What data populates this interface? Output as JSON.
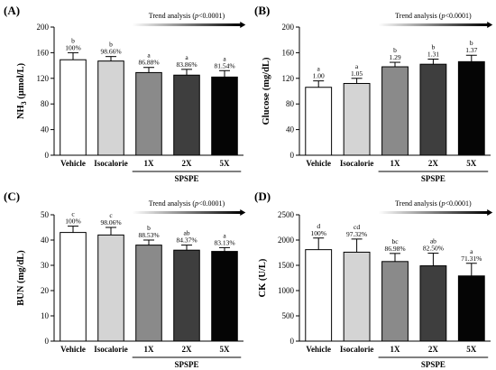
{
  "figure": {
    "common": {
      "categories": [
        "Vehicle",
        "Isocalorie",
        "1X",
        "2X",
        "5X"
      ],
      "group_label": "SPSPE",
      "bar_colors": [
        "#ffffff",
        "#d4d4d4",
        "#8a8a8a",
        "#3e3e3e",
        "#050505"
      ],
      "trend_prefix": "Trend analysis (",
      "trend_p": "p",
      "trend_suffix": "<0.0001)"
    }
  },
  "chart_data": [
    {
      "id": "A",
      "panel_label": "(A)",
      "type": "bar",
      "ylabel": "NH3 (μmol/L)",
      "ylabel_parts": {
        "main": "NH",
        "sub": "3",
        "rest": " (μmol/L)"
      },
      "ylim": [
        0,
        200
      ],
      "yticks": [
        "0",
        "40",
        "80",
        "120",
        "160",
        "200"
      ],
      "categories": [
        "Vehicle",
        "Isocalorie",
        "1X",
        "2X",
        "5X"
      ],
      "values": [
        149,
        147,
        129,
        125,
        122
      ],
      "errors": [
        11,
        7,
        8,
        9,
        10
      ],
      "letters": [
        "b",
        "b",
        "a",
        "a",
        "a"
      ],
      "labels": [
        "100%",
        "98.66%",
        "86.88%",
        "83.86%",
        "81.54%"
      ]
    },
    {
      "id": "B",
      "panel_label": "(B)",
      "type": "bar",
      "ylabel": "Glucose (mg/dL)",
      "ylim": [
        0,
        200
      ],
      "yticks": [
        "0",
        "40",
        "80",
        "120",
        "160",
        "200"
      ],
      "categories": [
        "Vehicle",
        "Isocalorie",
        "1X",
        "2X",
        "5X"
      ],
      "values": [
        106,
        112,
        138,
        142,
        146
      ],
      "errors": [
        10,
        8,
        7,
        8,
        10
      ],
      "letters": [
        "a",
        "a",
        "b",
        "b",
        "b"
      ],
      "labels": [
        "1.00",
        "1.05",
        "1.29",
        "1.31",
        "1.37"
      ]
    },
    {
      "id": "C",
      "panel_label": "(C)",
      "type": "bar",
      "ylabel": "BUN (mg/dL)",
      "ylim": [
        0,
        50
      ],
      "yticks": [
        "0",
        "10",
        "20",
        "30",
        "40",
        "50"
      ],
      "categories": [
        "Vehicle",
        "Isocalorie",
        "1X",
        "2X",
        "5X"
      ],
      "values": [
        43,
        42,
        38,
        36,
        35.5
      ],
      "errors": [
        2.5,
        3,
        2,
        2,
        1.5
      ],
      "letters": [
        "c",
        "c",
        "b",
        "ab",
        "a"
      ],
      "labels": [
        "100%",
        "98.06%",
        "88.53%",
        "84.37%",
        "83.13%"
      ]
    },
    {
      "id": "D",
      "panel_label": "(D)",
      "type": "bar",
      "ylabel": "CK (U/L)",
      "ylim": [
        0,
        2500
      ],
      "yticks": [
        "0",
        "500",
        "1000",
        "1500",
        "2000",
        "2500"
      ],
      "categories": [
        "Vehicle",
        "Isocalorie",
        "1X",
        "2X",
        "5X"
      ],
      "values": [
        1810,
        1760,
        1575,
        1490,
        1290
      ],
      "errors": [
        230,
        260,
        160,
        250,
        250
      ],
      "letters": [
        "d",
        "cd",
        "bc",
        "ab",
        "a"
      ],
      "labels": [
        "100%",
        "97.32%",
        "86.98%",
        "82.50%",
        "71.31%"
      ]
    }
  ]
}
